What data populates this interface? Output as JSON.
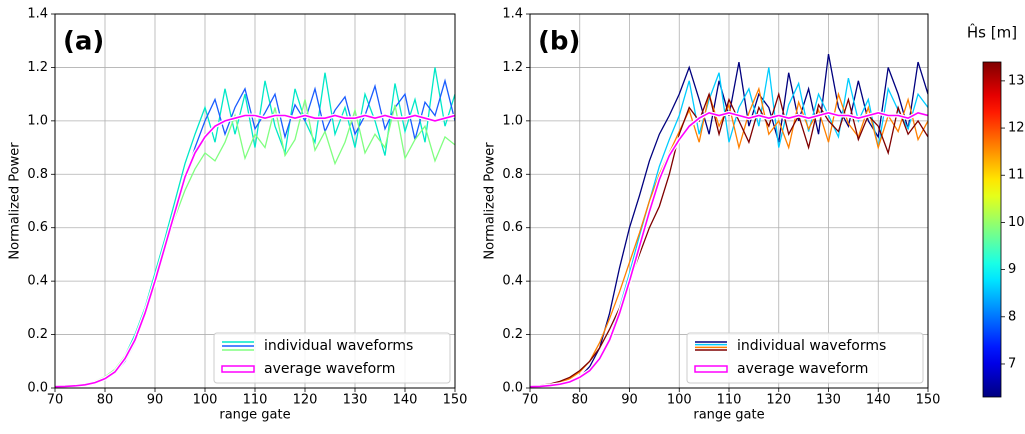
{
  "chart_data": [
    {
      "type": "line",
      "title": "(a)",
      "xlabel": "range gate",
      "ylabel": "Normalized Power",
      "x": [
        70,
        72,
        74,
        76,
        78,
        80,
        82,
        84,
        86,
        88,
        90,
        92,
        94,
        96,
        98,
        100,
        102,
        104,
        106,
        108,
        110,
        112,
        114,
        116,
        118,
        120,
        122,
        124,
        126,
        128,
        130,
        132,
        134,
        136,
        138,
        140,
        142,
        144,
        146,
        148,
        150
      ],
      "xlim": [
        70,
        150
      ],
      "ylim": [
        0,
        1.4
      ],
      "xticks": [
        70,
        80,
        90,
        100,
        110,
        120,
        130,
        140,
        150
      ],
      "yticks": [
        {
          "value": 0,
          "label": "0.0"
        },
        0.2,
        0.4,
        0.6,
        0.8,
        {
          "value": 1,
          "label": "1.0"
        },
        1.2,
        1.4
      ],
      "grid": true,
      "legend": "lower right",
      "series": [
        {
          "name": "individual waveforms",
          "lines": [
            {
              "color": "#00e8c8",
              "values": [
                0.005,
                0.006,
                0.009,
                0.013,
                0.022,
                0.04,
                0.065,
                0.12,
                0.2,
                0.3,
                0.43,
                0.56,
                0.7,
                0.84,
                0.95,
                1.05,
                0.92,
                1.12,
                0.95,
                1.1,
                0.9,
                1.15,
                0.98,
                0.88,
                1.12,
                1.0,
                0.92,
                1.18,
                0.95,
                1.05,
                0.9,
                1.1,
                1.0,
                0.87,
                1.14,
                0.96,
                1.08,
                0.92,
                1.2,
                0.98,
                1.1
              ]
            },
            {
              "color": "#1a5cff",
              "values": [
                0.004,
                0.005,
                0.007,
                0.011,
                0.018,
                0.03,
                0.055,
                0.1,
                0.17,
                0.27,
                0.39,
                0.52,
                0.65,
                0.78,
                0.9,
                1.0,
                1.08,
                0.95,
                1.05,
                1.12,
                0.97,
                1.03,
                1.1,
                0.94,
                1.06,
                1.0,
                1.12,
                0.96,
                1.04,
                1.09,
                0.95,
                1.02,
                1.13,
                0.97,
                1.05,
                1.1,
                0.93,
                1.07,
                1.02,
                1.15,
                1.0
              ]
            },
            {
              "color": "#80ff80",
              "values": [
                0.006,
                0.007,
                0.01,
                0.015,
                0.025,
                0.042,
                0.07,
                0.12,
                0.19,
                0.29,
                0.4,
                0.52,
                0.64,
                0.74,
                0.82,
                0.88,
                0.85,
                0.92,
                1.02,
                0.86,
                0.95,
                0.9,
                1.05,
                0.87,
                0.93,
                1.08,
                0.89,
                0.96,
                0.84,
                0.92,
                1.04,
                0.88,
                0.95,
                0.9,
                1.06,
                0.86,
                0.93,
                0.98,
                0.85,
                0.94,
                0.91
              ]
            }
          ]
        },
        {
          "name": "average waveform",
          "color": "#ff00ff",
          "values": [
            0.005,
            0.006,
            0.008,
            0.012,
            0.02,
            0.035,
            0.06,
            0.11,
            0.18,
            0.28,
            0.4,
            0.53,
            0.66,
            0.79,
            0.88,
            0.94,
            0.98,
            1.0,
            1.01,
            1.02,
            1.02,
            1.01,
            1.02,
            1.02,
            1.01,
            1.02,
            1.01,
            1.01,
            1.02,
            1.01,
            1.01,
            1.02,
            1.01,
            1.02,
            1.01,
            1.01,
            1.02,
            1.01,
            1.0,
            1.01,
            1.02
          ]
        }
      ]
    },
    {
      "type": "line",
      "title": "(b)",
      "xlabel": "range gate",
      "ylabel": "Normalized Power",
      "x": [
        70,
        72,
        74,
        76,
        78,
        80,
        82,
        84,
        86,
        88,
        90,
        92,
        94,
        96,
        98,
        100,
        102,
        104,
        106,
        108,
        110,
        112,
        114,
        116,
        118,
        120,
        122,
        124,
        126,
        128,
        130,
        132,
        134,
        136,
        138,
        140,
        142,
        144,
        146,
        148,
        150
      ],
      "xlim": [
        70,
        150
      ],
      "ylim": [
        0,
        1.4
      ],
      "xticks": [
        70,
        80,
        90,
        100,
        110,
        120,
        130,
        140,
        150
      ],
      "yticks": [
        {
          "value": 0,
          "label": "0.0"
        },
        0.2,
        0.4,
        0.6,
        0.8,
        {
          "value": 1,
          "label": "1.0"
        },
        1.2,
        1.4
      ],
      "grid": true,
      "legend": "lower right",
      "series": [
        {
          "name": "individual waveforms",
          "lines": [
            {
              "color": "#00007f",
              "values": [
                0.004,
                0.005,
                0.007,
                0.012,
                0.02,
                0.04,
                0.08,
                0.15,
                0.28,
                0.45,
                0.6,
                0.72,
                0.85,
                0.95,
                1.02,
                1.1,
                1.2,
                1.08,
                0.95,
                1.15,
                1.02,
                1.22,
                0.98,
                1.1,
                1.05,
                0.92,
                1.18,
                1.0,
                1.12,
                0.95,
                1.25,
                1.05,
                0.98,
                1.15,
                1.0,
                0.94,
                1.2,
                1.1,
                0.97,
                1.22,
                1.1
              ]
            },
            {
              "color": "#00ccff",
              "values": [
                0.005,
                0.006,
                0.008,
                0.012,
                0.02,
                0.035,
                0.06,
                0.11,
                0.19,
                0.3,
                0.43,
                0.57,
                0.7,
                0.83,
                0.93,
                1.02,
                1.15,
                0.95,
                1.08,
                1.18,
                0.92,
                1.05,
                1.12,
                0.98,
                1.2,
                0.9,
                1.06,
                1.14,
                0.96,
                1.1,
                1.02,
                0.94,
                1.16,
                1.0,
                1.08,
                0.9,
                1.12,
                1.04,
                0.97,
                1.1,
                1.05
              ]
            },
            {
              "color": "#ff8000",
              "values": [
                0.007,
                0.009,
                0.013,
                0.02,
                0.035,
                0.06,
                0.1,
                0.17,
                0.26,
                0.36,
                0.47,
                0.58,
                0.7,
                0.8,
                0.88,
                0.96,
                1.04,
                0.92,
                1.1,
                0.98,
                1.06,
                0.9,
                1.03,
                1.12,
                0.95,
                1.0,
                0.9,
                1.07,
                0.97,
                1.04,
                0.92,
                1.1,
                0.99,
                0.94,
                1.05,
                0.9,
                1.02,
                0.96,
                1.08,
                0.93,
                1.0
              ]
            },
            {
              "color": "#7f0000",
              "values": [
                0.008,
                0.01,
                0.015,
                0.025,
                0.04,
                0.065,
                0.1,
                0.15,
                0.22,
                0.3,
                0.4,
                0.5,
                0.6,
                0.68,
                0.8,
                0.95,
                1.05,
                1.0,
                1.1,
                0.95,
                1.08,
                1.0,
                0.92,
                1.05,
                0.98,
                1.1,
                0.95,
                1.02,
                0.9,
                1.06,
                1.0,
                0.96,
                1.08,
                0.93,
                1.02,
                0.98,
                0.88,
                1.05,
                0.95,
                1.0,
                0.94
              ]
            }
          ]
        },
        {
          "name": "average waveform",
          "color": "#ff00ff",
          "values": [
            0.005,
            0.006,
            0.009,
            0.014,
            0.023,
            0.04,
            0.065,
            0.11,
            0.18,
            0.28,
            0.4,
            0.53,
            0.66,
            0.78,
            0.87,
            0.93,
            0.98,
            1.01,
            1.03,
            1.02,
            1.03,
            1.02,
            1.01,
            1.02,
            1.01,
            1.02,
            1.01,
            1.02,
            1.01,
            1.02,
            1.03,
            1.02,
            1.02,
            1.01,
            1.02,
            1.03,
            1.02,
            1.02,
            1.01,
            1.03,
            1.02
          ]
        }
      ],
      "colorbar": {
        "label": "Ĥs [m]",
        "lim": [
          6.3,
          13.4
        ],
        "ticks": [
          7,
          8,
          9,
          10,
          11,
          12,
          13
        ],
        "colormap": "jet"
      }
    }
  ]
}
